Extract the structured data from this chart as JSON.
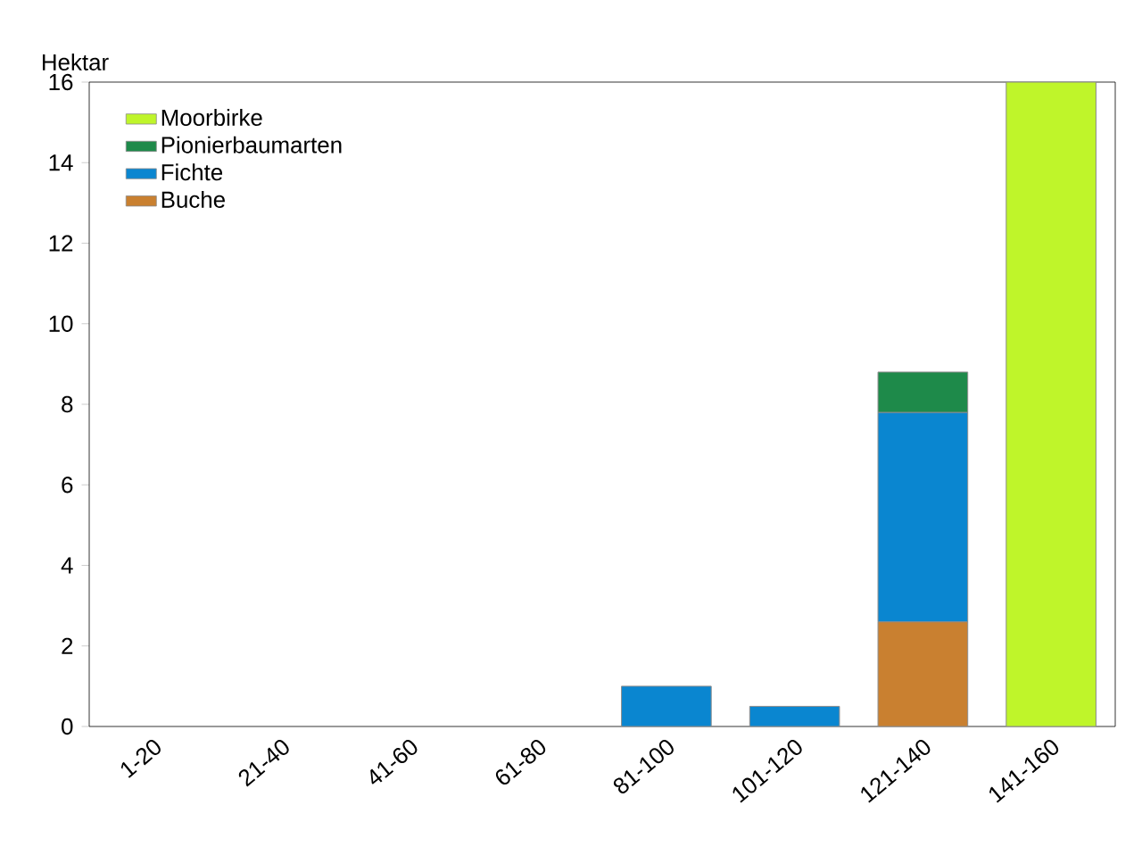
{
  "chart_data": {
    "type": "bar",
    "stacked": true,
    "ylabel": "Hektar",
    "categories": [
      "1-20",
      "21-40",
      "41-60",
      "61-80",
      "81-100",
      "101-120",
      "121-140",
      "141-160"
    ],
    "series": [
      {
        "name": "Buche",
        "color": "#c98030",
        "values": [
          null,
          null,
          null,
          null,
          null,
          null,
          2.6,
          null
        ]
      },
      {
        "name": "Fichte",
        "color": "#0a86d0",
        "values": [
          null,
          null,
          null,
          null,
          1.0,
          0.5,
          5.2,
          null
        ]
      },
      {
        "name": "Pionierbaumarten",
        "color": "#1e8a4a",
        "values": [
          null,
          null,
          null,
          null,
          null,
          null,
          1.0,
          null
        ]
      },
      {
        "name": "Moorbirke",
        "color": "#bff52a",
        "values": [
          null,
          null,
          null,
          null,
          null,
          null,
          null,
          16
        ]
      }
    ],
    "ylim": [
      0,
      16
    ],
    "yticks": [
      0,
      2,
      4,
      6,
      8,
      10,
      12,
      14,
      16
    ],
    "legend": "top left"
  }
}
